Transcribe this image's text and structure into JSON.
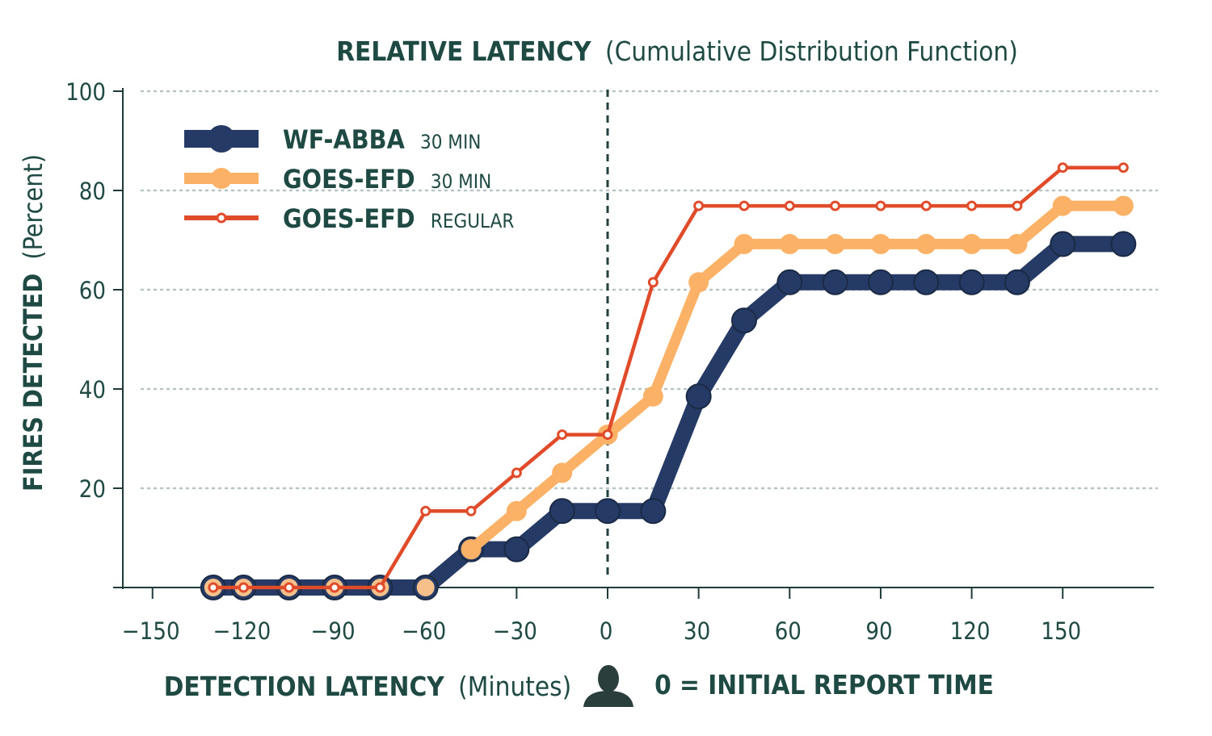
{
  "chart_data": {
    "type": "line",
    "title": {
      "bold": "RELATIVE LATENCY",
      "regular": "(Cumulative Distribution Function)"
    },
    "xlabel": {
      "bold": "DETECTION LATENCY",
      "regular": "(Minutes)"
    },
    "ylabel": {
      "bold": "FIRES DETECTED",
      "regular": "(Percent)"
    },
    "annotation": "0 = INITIAL REPORT TIME",
    "x_ticks": [
      -150,
      -120,
      -90,
      -60,
      -30,
      0,
      30,
      60,
      90,
      120,
      150
    ],
    "y_ticks": [
      20,
      40,
      60,
      80,
      100
    ],
    "xlim": [
      -150,
      180
    ],
    "ylim": [
      0,
      100
    ],
    "grid": "horizontal-dotted",
    "reference_line_x": 0,
    "legend_placement": "top-left",
    "series": [
      {
        "name": "WF-ABBA",
        "qualifier": "30 MIN",
        "color": "#253a64",
        "style": "thick",
        "points": [
          [
            -130,
            0
          ],
          [
            -120,
            0
          ],
          [
            -105,
            0
          ],
          [
            -90,
            0
          ],
          [
            -75,
            0
          ],
          [
            -60,
            0
          ],
          [
            -45,
            7.7
          ],
          [
            -30,
            7.7
          ],
          [
            -15,
            15.4
          ],
          [
            0,
            15.4
          ],
          [
            15,
            15.4
          ],
          [
            30,
            38.5
          ],
          [
            45,
            53.8
          ],
          [
            60,
            61.5
          ],
          [
            75,
            61.5
          ],
          [
            90,
            61.5
          ],
          [
            105,
            61.5
          ],
          [
            120,
            61.5
          ],
          [
            135,
            61.5
          ],
          [
            150,
            69.2
          ],
          [
            170,
            69.2
          ]
        ]
      },
      {
        "name": "GOES-EFD",
        "qualifier": "30 MIN",
        "color": "#fbb266",
        "style": "medium",
        "points": [
          [
            -45,
            7.7
          ],
          [
            -30,
            15.4
          ],
          [
            -15,
            23.1
          ],
          [
            0,
            30.8
          ],
          [
            15,
            38.5
          ],
          [
            30,
            61.5
          ],
          [
            45,
            69.2
          ],
          [
            60,
            69.2
          ],
          [
            75,
            69.2
          ],
          [
            90,
            69.2
          ],
          [
            105,
            69.2
          ],
          [
            120,
            69.2
          ],
          [
            135,
            69.2
          ],
          [
            150,
            76.9
          ],
          [
            170,
            76.9
          ]
        ]
      },
      {
        "name": "GOES-EFD",
        "qualifier": "REGULAR",
        "color": "#e04b2a",
        "style": "thin",
        "points": [
          [
            -130,
            0
          ],
          [
            -120,
            0
          ],
          [
            -105,
            0
          ],
          [
            -90,
            0
          ],
          [
            -75,
            0
          ],
          [
            -60,
            15.4
          ],
          [
            -45,
            15.4
          ],
          [
            -30,
            23.1
          ],
          [
            -15,
            30.8
          ],
          [
            0,
            30.8
          ],
          [
            15,
            61.5
          ],
          [
            30,
            76.9
          ],
          [
            45,
            76.9
          ],
          [
            60,
            76.9
          ],
          [
            75,
            76.9
          ],
          [
            90,
            76.9
          ],
          [
            105,
            76.9
          ],
          [
            120,
            76.9
          ],
          [
            135,
            76.9
          ],
          [
            150,
            84.6
          ],
          [
            170,
            84.6
          ]
        ]
      }
    ]
  },
  "colors": {
    "text": "#1f4a44",
    "axis": "#1f3a3a",
    "grid": "#b8c4c4"
  },
  "icons": {
    "annotation_icon": "person-silhouette-icon"
  }
}
